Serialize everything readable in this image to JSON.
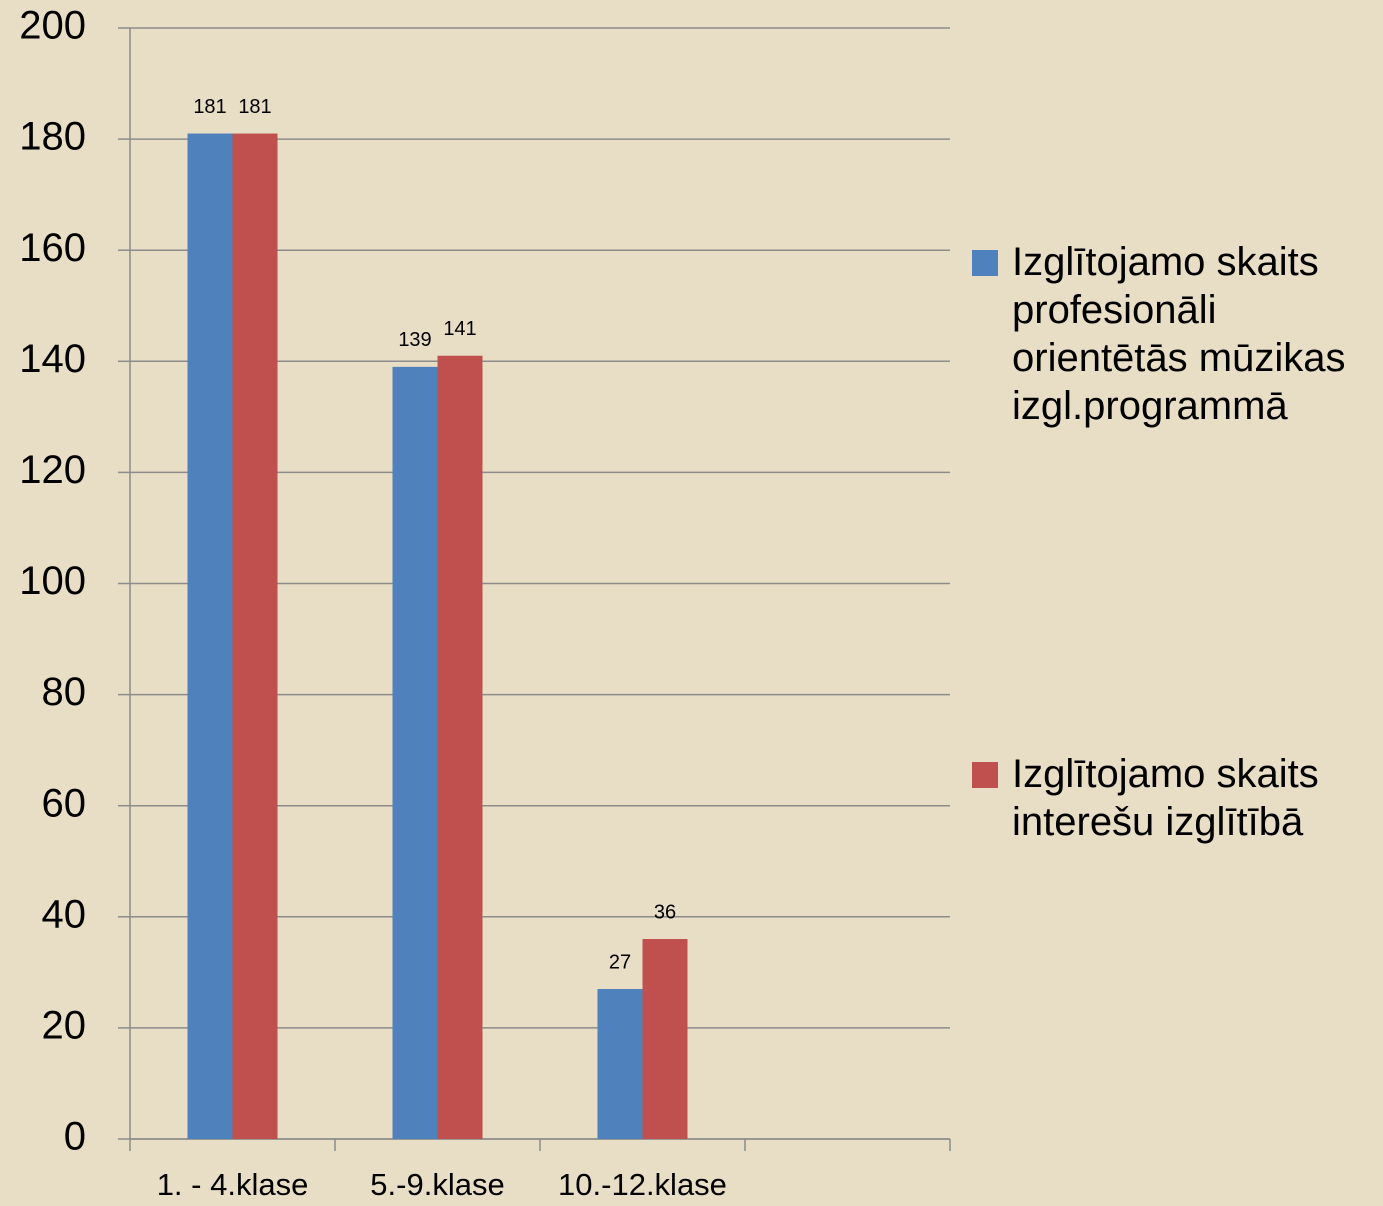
{
  "chart_data": {
    "type": "bar",
    "categories": [
      "1. - 4.klase",
      "5.-9.klase",
      "10.-12.klase",
      null
    ],
    "series": [
      {
        "name": "Izglītojamo skaits profesionāli orientētās mūzikas izgl.programmā",
        "color": "#4f81bd",
        "values": [
          181,
          139,
          27,
          null
        ]
      },
      {
        "name": "Izglītojamo skaits interešu izglītībā",
        "color": "#c0504d",
        "values": [
          181,
          141,
          36,
          null
        ]
      }
    ],
    "ylim": [
      0,
      200
    ],
    "yticks": [
      0,
      20,
      40,
      60,
      80,
      100,
      120,
      140,
      160,
      180,
      200
    ],
    "grid": true,
    "legend": "right"
  }
}
